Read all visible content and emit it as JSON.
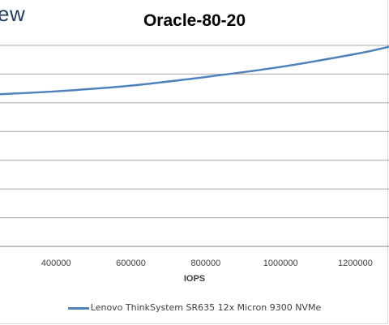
{
  "brand": {
    "logo_text": "ew"
  },
  "chart_data": {
    "type": "line",
    "title": "Oracle-80-20",
    "xlabel": "IOPS",
    "ylabel": "",
    "x_ticks": [
      400000,
      600000,
      800000,
      1000000,
      1200000
    ],
    "x_tick_labels": [
      "400000",
      "600000",
      "800000",
      "1000000",
      "1200000"
    ],
    "xlim": [
      250000,
      1290000
    ],
    "ylim": [
      0,
      7
    ],
    "grid": true,
    "legend_position": "bottom",
    "series": [
      {
        "name": "Lenovo ThinkSystem SR635 12x Micron 9300 NVMe",
        "color": "#4f81bd",
        "points": [
          {
            "x": 250000,
            "y": 5.3
          },
          {
            "x": 400000,
            "y": 5.4
          },
          {
            "x": 600000,
            "y": 5.6
          },
          {
            "x": 800000,
            "y": 5.9
          },
          {
            "x": 1000000,
            "y": 6.25
          },
          {
            "x": 1200000,
            "y": 6.7
          },
          {
            "x": 1290000,
            "y": 6.95
          }
        ]
      }
    ]
  }
}
